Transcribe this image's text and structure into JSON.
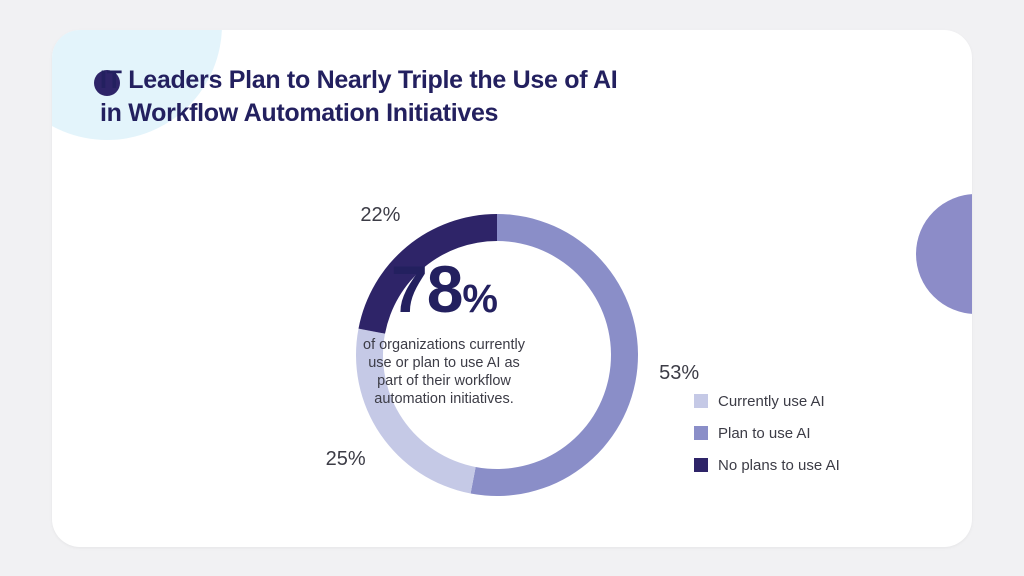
{
  "title_lines": [
    "IT Leaders Plan to Nearly Triple the Use of AI",
    "in Workflow Automation Initiatives"
  ],
  "center": {
    "value": "78",
    "suffix": "%",
    "description_lines": [
      "of organizations currently",
      "use or plan to use AI as",
      "part of their workflow",
      "automation initiatives."
    ]
  },
  "colors": {
    "current": "#c5c9e6",
    "plan": "#8a8ec8",
    "none": "#2e2468"
  },
  "chart_data": {
    "type": "pie",
    "title": "IT Leaders Plan to Nearly Triple the Use of AI in Workflow Automation Initiatives",
    "categories": [
      "Currently use AI",
      "Plan to use AI",
      "No plans to use AI"
    ],
    "values": [
      25,
      53,
      22
    ],
    "labels": [
      "25%",
      "53%",
      "22%"
    ],
    "legend_placement": "bottom-right"
  }
}
